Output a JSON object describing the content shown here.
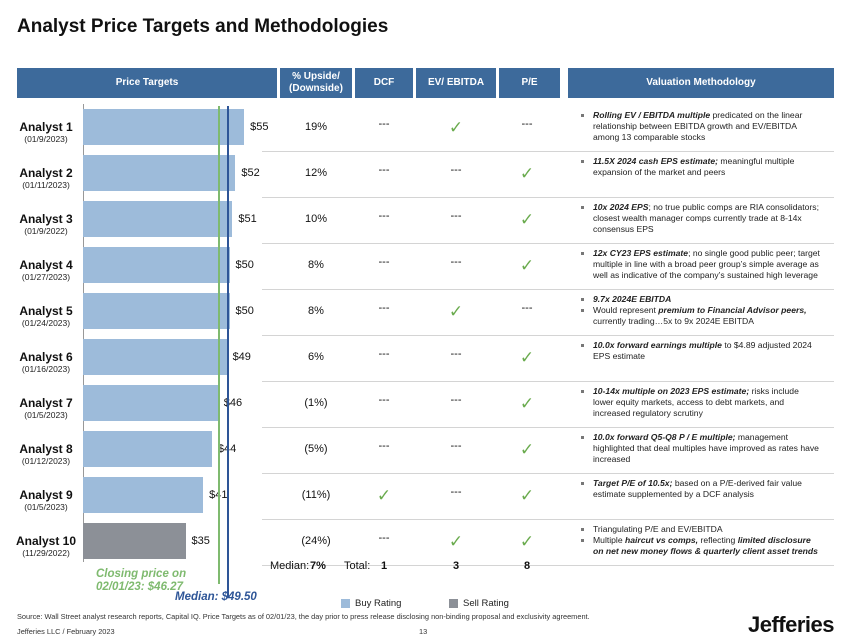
{
  "title": "Analyst Price Targets and Methodologies",
  "headers": [
    "Price Targets",
    "% Upside/ (Downside)",
    "DCF",
    "EV/ EBITDA",
    "P/E",
    "Valuation Methodology"
  ],
  "marks": {
    "check": "✓",
    "none": "---",
    "check_color": "#6aab4e"
  },
  "legend": [
    {
      "name": "Buy Rating",
      "color": "#9dbbda"
    },
    {
      "name": "Sell Rating",
      "color": "#8c9097"
    }
  ],
  "rows": [
    {
      "analyst": "Analyst 1",
      "date": "(01/9/2023)",
      "price_target": 55,
      "price_label": "$55",
      "rating": "Buy Rating",
      "upside": "19%",
      "dcf": "none",
      "ev_ebitda": "check",
      "pe": "none",
      "methodology": [
        [
          {
            "text": "Rolling EV / EBITDA multiple",
            "em": true
          },
          {
            "text": " predicated on the linear relationship between EBITDA growth and EV/EBITDA among 13 comparable stocks"
          }
        ]
      ]
    },
    {
      "analyst": "Analyst 2",
      "date": "(01/11/2023)",
      "price_target": 52,
      "price_label": "$52",
      "rating": "Buy Rating",
      "upside": "12%",
      "dcf": "none",
      "ev_ebitda": "none",
      "pe": "check",
      "methodology": [
        [
          {
            "text": "11.5X 2024 cash EPS estimate;",
            "em": true
          },
          {
            "text": " meaningful multiple expansion of the market and peers"
          }
        ]
      ]
    },
    {
      "analyst": "Analyst 3",
      "date": "(01/9/2022)",
      "price_target": 51,
      "price_label": "$51",
      "rating": "Buy Rating",
      "upside": "10%",
      "dcf": "none",
      "ev_ebitda": "none",
      "pe": "check",
      "methodology": [
        [
          {
            "text": "10x 2024 EPS",
            "em": true
          },
          {
            "text": "; no true public comps are RIA consolidators; closest wealth manager comps currently trade at 8-14x consensus EPS"
          }
        ]
      ]
    },
    {
      "analyst": "Analyst 4",
      "date": "(01/27/2023)",
      "price_target": 50,
      "price_label": "$50",
      "rating": "Buy Rating",
      "upside": "8%",
      "dcf": "none",
      "ev_ebitda": "none",
      "pe": "check",
      "methodology": [
        [
          {
            "text": "12x CY23 EPS estimate",
            "em": true
          },
          {
            "text": "; no single good public peer; target multiple in line with a broad peer group’s simple average as well as indicative of the company’s sustained high leverage"
          }
        ]
      ]
    },
    {
      "analyst": "Analyst 5",
      "date": "(01/24/2023)",
      "price_target": 50,
      "price_label": "$50",
      "rating": "Buy Rating",
      "upside": "8%",
      "dcf": "none",
      "ev_ebitda": "check",
      "pe": "none",
      "methodology": [
        [
          {
            "text": "9.7x 2024E EBITDA",
            "em": true
          }
        ],
        [
          {
            "text": "Would represent "
          },
          {
            "text": "premium to Financial Advisor peers,",
            "em": true
          },
          {
            "text": " currently trading…5x to 9x 2024E EBITDA"
          }
        ]
      ]
    },
    {
      "analyst": "Analyst 6",
      "date": "(01/16/2023)",
      "price_target": 49,
      "price_label": "$49",
      "rating": "Buy Rating",
      "upside": "6%",
      "dcf": "none",
      "ev_ebitda": "none",
      "pe": "check",
      "methodology": [
        [
          {
            "text": "10.0x forward earnings multiple",
            "em": true
          },
          {
            "text": " to $4.89 adjusted 2024 EPS estimate"
          }
        ]
      ]
    },
    {
      "analyst": "Analyst 7",
      "date": "(01/5/2023)",
      "price_target": 46,
      "price_label": "$46",
      "rating": "Buy Rating",
      "upside": "(1%)",
      "dcf": "none",
      "ev_ebitda": "none",
      "pe": "check",
      "methodology": [
        [
          {
            "text": "10-14x multiple on 2023 EPS estimate;",
            "em": true
          },
          {
            "text": " risks include lower equity markets, access to debt markets, and increased regulatory scrutiny"
          }
        ]
      ]
    },
    {
      "analyst": "Analyst 8",
      "date": "(01/12/2023)",
      "price_target": 44,
      "price_label": "$44",
      "rating": "Buy Rating",
      "upside": "(5%)",
      "dcf": "none",
      "ev_ebitda": "none",
      "pe": "check",
      "methodology": [
        [
          {
            "text": "10.0x forward Q5-Q8 P / E multiple;",
            "em": true
          },
          {
            "text": " management highlighted that deal multiples have improved as rates have increased"
          }
        ]
      ]
    },
    {
      "analyst": "Analyst 9",
      "date": "(01/5/2023)",
      "price_target": 41,
      "price_label": "$41",
      "rating": "Buy Rating",
      "upside": "(11%)",
      "dcf": "check",
      "ev_ebitda": "none",
      "pe": "check",
      "methodology": [
        [
          {
            "text": "Target P/E of 10.5x;",
            "em": true
          },
          {
            "text": " based on a P/E-derived fair value estimate supplemented by a DCF analysis"
          }
        ]
      ]
    },
    {
      "analyst": "Analyst 10",
      "date": "(11/29/2022)",
      "price_target": 35,
      "price_label": "$35",
      "rating": "Sell Rating",
      "upside": "(24%)",
      "dcf": "none",
      "ev_ebitda": "check",
      "pe": "check",
      "methodology": [
        [
          {
            "text": "Triangulating P/E and EV/EBITDA"
          }
        ],
        [
          {
            "text": "Multiple "
          },
          {
            "text": "haircut vs comps,",
            "em": true
          },
          {
            "text": " reflecting "
          },
          {
            "text": "limited disclosure on net new money flows & quarterly client asset trends",
            "em": true
          }
        ]
      ]
    }
  ],
  "median": {
    "label": "Median:",
    "upside": "7%",
    "price_label": "Median: $49.50",
    "price": 49.5,
    "color": "#2e5597"
  },
  "closing": {
    "label": "Closing price on 02/01/23: $46.27",
    "price": 46.27,
    "color": "#7fba6f"
  },
  "totals": {
    "label": "Total:",
    "dcf": 1,
    "ev_ebitda": 3,
    "pe": 8
  },
  "footer": {
    "source": "Source: Wall Street analyst research reports, Capital IQ. Price Targets as of 02/01/23, the day prior to press release disclosing non-binding proposal and exclusivity agreement.",
    "company": "Jefferies LLC  /  February 2023",
    "page": "13",
    "logo": "Jefferies"
  }
}
